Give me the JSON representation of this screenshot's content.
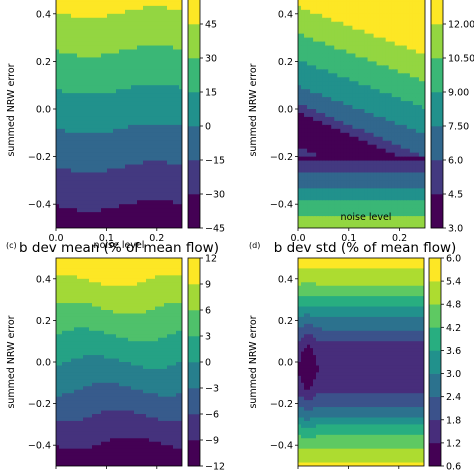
{
  "chart_data": [
    {
      "type": "heatmap",
      "panel_label": "",
      "title": "",
      "xlabel": "noise level",
      "ylabel": "summed NRW error",
      "xticks": [
        "0.0",
        "0.1",
        "0.2"
      ],
      "yticks": [
        "0.4",
        "0.2",
        "0.0",
        "−0.2",
        "−0.4"
      ],
      "xlim": [
        0.0,
        0.25
      ],
      "ylim": [
        -0.5,
        0.5
      ],
      "colorbar": {
        "ticks": [
          "45",
          "30",
          "15",
          "0",
          "−15",
          "−30",
          "−45"
        ],
        "levels": [
          -45,
          -30,
          -15,
          0,
          15,
          30,
          45,
          55
        ]
      },
      "description_values": {
        "top_row": 50,
        "bottom_row": -45
      }
    },
    {
      "type": "heatmap",
      "panel_label": "",
      "title": "",
      "xlabel": "noise level",
      "ylabel": "summed NRW error",
      "xticks": [
        "0.0",
        "0.1",
        "0.2"
      ],
      "yticks": [
        "0.4",
        "0.2",
        "0.0",
        "−0.2",
        "−0.4"
      ],
      "xlim": [
        0.0,
        0.25
      ],
      "ylim": [
        -0.5,
        0.5
      ],
      "colorbar": {
        "ticks": [
          "12.00",
          "10.50",
          "9.00",
          "7.50",
          "6.0",
          "4.5",
          "3.0"
        ],
        "levels": [
          3.0,
          4.5,
          6.0,
          7.5,
          9.0,
          10.5,
          12.0,
          13.0
        ]
      },
      "description_values": {
        "min": 3.0,
        "max": 13.0
      }
    },
    {
      "type": "heatmap",
      "panel_label": "(c)",
      "title": "b dev mean (% of mean flow)",
      "xlabel": "",
      "ylabel": "summed NRW error",
      "xticks": [
        "",
        ""
      ],
      "yticks": [
        "0.4",
        "0.2",
        "0.0",
        "−0.2",
        "−0.4"
      ],
      "xlim": [
        0.0,
        0.25
      ],
      "ylim": [
        -0.5,
        0.5
      ],
      "colorbar": {
        "ticks": [
          "12",
          "9",
          "6",
          "3",
          "0",
          "−3",
          "−6",
          "−9",
          "−12"
        ],
        "levels": [
          -12,
          -9,
          -6,
          -3,
          0,
          3,
          6,
          9,
          12
        ]
      },
      "description_values": {
        "top_row": 12,
        "bottom_row": -11
      }
    },
    {
      "type": "heatmap",
      "panel_label": "(d)",
      "title": "b dev std (% of mean flow)",
      "xlabel": "",
      "ylabel": "summed NRW error",
      "xticks": [
        "",
        ""
      ],
      "yticks": [
        "0.4",
        "0.2",
        "0.0",
        "−0.2",
        "−0.4"
      ],
      "xlim": [
        0.0,
        0.25
      ],
      "ylim": [
        -0.5,
        0.5
      ],
      "colorbar": {
        "ticks": [
          "6.0",
          "5.4",
          "4.8",
          "4.2",
          "3.6",
          "3.0",
          "2.4",
          "1.8",
          "1.2",
          "0.6"
        ],
        "levels": [
          0.6,
          1.2,
          1.8,
          2.4,
          3.0,
          3.6,
          4.2,
          4.8,
          5.4,
          6.0
        ]
      },
      "description_values": {
        "min": 0.6,
        "max": 6.0
      }
    }
  ],
  "colors": {
    "viridis": [
      "#440154",
      "#472d7b",
      "#3b528b",
      "#2c728e",
      "#21918c",
      "#28ae80",
      "#5ec962",
      "#addc30",
      "#fde725"
    ]
  }
}
